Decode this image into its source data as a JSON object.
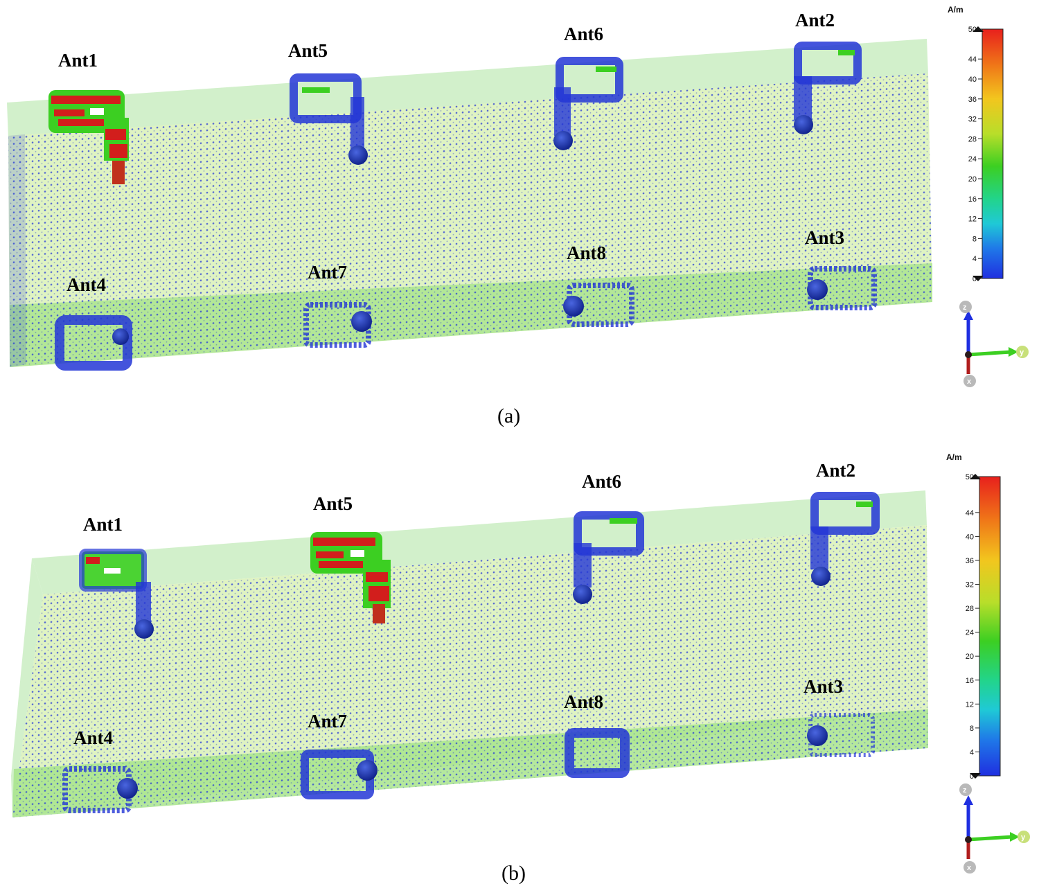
{
  "panels": [
    {
      "caption": "(a)",
      "labels": {
        "ant1": "Ant1",
        "ant2": "Ant2",
        "ant3": "Ant3",
        "ant4": "Ant4",
        "ant5": "Ant5",
        "ant6": "Ant6",
        "ant7": "Ant7",
        "ant8": "Ant8"
      },
      "excited_port": "Ant1"
    },
    {
      "caption": "(b)",
      "labels": {
        "ant1": "Ant1",
        "ant2": "Ant2",
        "ant3": "Ant3",
        "ant4": "Ant4",
        "ant5": "Ant5",
        "ant6": "Ant6",
        "ant7": "Ant7",
        "ant8": "Ant8"
      },
      "excited_port": "Ant5"
    }
  ],
  "colorbar": {
    "unit": "A/m",
    "ticks": [
      "50",
      "44",
      "40",
      "36",
      "32",
      "28",
      "24",
      "20",
      "16",
      "12",
      "8",
      "4",
      "0"
    ],
    "colors": [
      "#e8201c",
      "#f07a18",
      "#f2c61e",
      "#b8de2a",
      "#3ccf22",
      "#22d48a",
      "#1fc9d6",
      "#1f78e8",
      "#1f2fe0"
    ]
  },
  "axes": {
    "z": "z",
    "y": "y",
    "x": "x"
  },
  "colors": {
    "board_top": "#cdeec5",
    "board_front": "#c9efb4",
    "board_bottom": "#9fe08a",
    "mesh": "#2336d6",
    "hot": "#d21e1c"
  }
}
